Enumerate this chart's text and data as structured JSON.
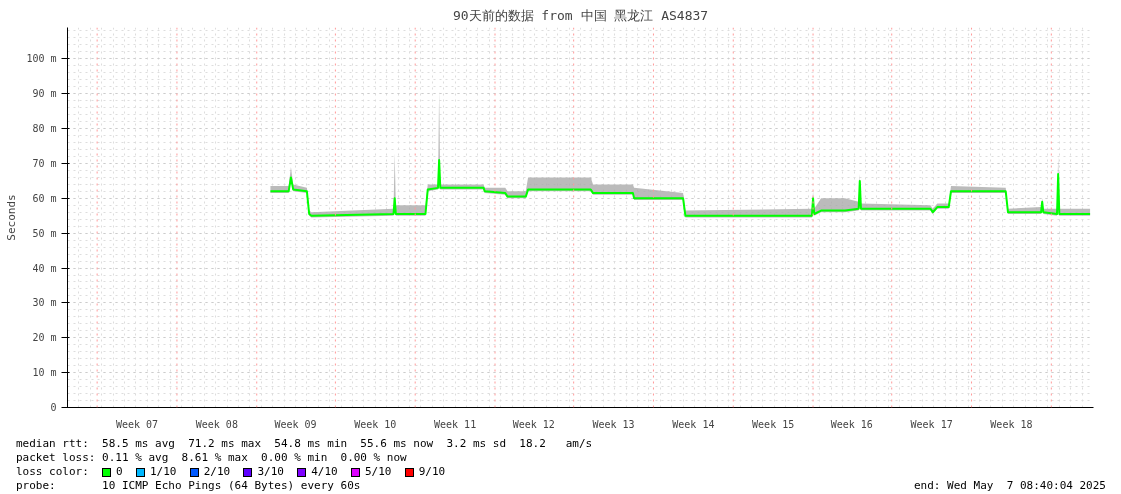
{
  "chart_data": {
    "type": "line",
    "title": "90天前的数据 from 中国 黑龙江 AS4837",
    "ylabel": "Seconds",
    "x": [
      "2025-02-24T03:52",
      "2025-02-25T18:16",
      "2025-02-25T23:04",
      "2025-02-26T03:52",
      "2025-02-27T08:40",
      "2025-02-27T13:28",
      "2025-02-27T18:16",
      "2025-03-06T23:04",
      "2025-03-07T01:28",
      "2025-03-07T03:52",
      "2025-03-09T18:16",
      "2025-03-09T23:04",
      "2025-03-10T20:40",
      "2025-03-10T23:04",
      "2025-03-11T01:28",
      "2025-03-14T20:40",
      "2025-03-14T23:04",
      "2025-03-16T18:16",
      "2025-03-16T23:04",
      "2025-03-18T13:28",
      "2025-03-18T18:16",
      "2025-03-24T06:16",
      "2025-03-24T11:04",
      "2025-03-27T23:04",
      "2025-03-28T01:28",
      "2025-04-01T08:40",
      "2025-04-01T13:28",
      "2025-04-12T15:52",
      "2025-04-12T18:16",
      "2025-04-12T20:40",
      "2025-04-13T11:04",
      "2025-04-15T13:28",
      "2025-04-16T18:16",
      "2025-04-16T20:40",
      "2025-04-16T23:04",
      "2025-04-23T01:28",
      "2025-04-23T06:16",
      "2025-04-23T15:52",
      "2025-04-24T15:52",
      "2025-04-24T20:40",
      "2025-04-29T15:52",
      "2025-04-29T20:40",
      "2025-05-02T18:16",
      "2025-05-02T20:40",
      "2025-05-02T23:04",
      "2025-05-04T03:52",
      "2025-05-04T06:16",
      "2025-05-04T08:40",
      "2025-05-07T01:28"
    ],
    "series": [
      {
        "name": "0",
        "color": "#00ff00",
        "values": [
          62,
          62,
          66,
          62.5,
          62,
          55.5,
          55,
          55.5,
          60,
          55.5,
          55.5,
          62.5,
          63,
          71,
          63,
          63,
          62,
          61.5,
          60.5,
          60.5,
          62.5,
          62.5,
          61.5,
          61.5,
          60,
          60,
          55,
          55,
          60,
          55.5,
          56.5,
          56.5,
          57,
          65,
          57,
          57,
          56,
          57.5,
          57.5,
          62,
          62,
          56,
          56,
          59,
          56,
          55.5,
          67,
          55.5,
          55.5
        ],
        "lower": [
          61.5,
          61.5,
          65.5,
          62,
          61.5,
          55,
          54.5,
          55,
          59.5,
          55,
          55,
          62,
          62.5,
          70.5,
          62.5,
          62.5,
          61.5,
          61,
          60,
          60,
          62,
          62,
          61,
          61,
          59.5,
          59.5,
          54.5,
          54.5,
          59.5,
          55,
          56,
          56,
          56.5,
          64.5,
          56.5,
          56.5,
          55.5,
          57,
          57,
          61.5,
          61.5,
          55.5,
          55.5,
          58.5,
          55.5,
          55,
          66.5,
          55,
          55
        ],
        "upper": [
          63.5,
          63.5,
          69,
          64,
          63,
          56.5,
          56,
          57,
          73,
          58,
          58,
          64,
          64,
          91,
          64,
          64,
          63,
          63,
          62,
          62,
          66,
          66,
          64,
          64,
          63,
          61.5,
          56.5,
          57,
          62,
          57,
          60,
          60,
          59,
          67,
          58.5,
          58,
          57,
          58.5,
          58.5,
          63.5,
          63,
          57,
          57.5,
          60,
          57,
          57,
          72,
          57,
          57
        ]
      },
      {
        "name": "1/10",
        "color": "#00b8ff",
        "values": [
          null,
          null,
          null,
          null,
          null,
          null,
          null,
          null,
          null,
          null,
          null,
          null,
          null,
          null,
          null,
          null,
          null,
          null,
          null,
          null,
          null,
          null,
          null,
          null,
          null,
          null,
          null,
          null,
          null,
          null,
          null,
          null,
          null,
          null,
          null,
          null,
          null,
          null,
          null,
          null,
          null,
          null,
          null,
          null,
          null,
          null,
          null,
          null,
          null
        ]
      },
      {
        "name": "2/10",
        "color": "#0059ff",
        "values": [
          null,
          null,
          null,
          null,
          null,
          null,
          null,
          null,
          null,
          null,
          null,
          null,
          null,
          null,
          null,
          null,
          null,
          null,
          null,
          null,
          null,
          null,
          null,
          null,
          null,
          null,
          null,
          null,
          null,
          null,
          null,
          null,
          null,
          null,
          null,
          null,
          null,
          null,
          null,
          null,
          null,
          null,
          null,
          null,
          null,
          null,
          null,
          null,
          null
        ]
      },
      {
        "name": "3/10",
        "color": "#5e00ff",
        "values": [
          null,
          null,
          null,
          null,
          null,
          null,
          null,
          null,
          null,
          null,
          null,
          null,
          null,
          null,
          null,
          null,
          null,
          null,
          null,
          null,
          null,
          null,
          null,
          null,
          null,
          null,
          null,
          null,
          null,
          null,
          null,
          null,
          null,
          null,
          null,
          null,
          null,
          null,
          null,
          null,
          null,
          null,
          null,
          null,
          null,
          null,
          null,
          null,
          null
        ]
      },
      {
        "name": "4/10",
        "color": "#7e00ff",
        "values": [
          null,
          null,
          null,
          null,
          null,
          null,
          null,
          null,
          null,
          null,
          null,
          null,
          null,
          null,
          null,
          null,
          null,
          null,
          null,
          null,
          null,
          null,
          null,
          null,
          null,
          null,
          null,
          null,
          null,
          null,
          null,
          null,
          null,
          null,
          null,
          null,
          null,
          null,
          null,
          null,
          null,
          null,
          null,
          null,
          null,
          null,
          null,
          null,
          null
        ]
      },
      {
        "name": "5/10",
        "color": "#dd00ff",
        "values": [
          null,
          null,
          null,
          null,
          null,
          null,
          null,
          null,
          null,
          null,
          null,
          null,
          null,
          null,
          null,
          null,
          null,
          null,
          null,
          null,
          null,
          null,
          null,
          null,
          null,
          null,
          null,
          null,
          null,
          null,
          null,
          null,
          null,
          null,
          null,
          null,
          null,
          null,
          null,
          null,
          null,
          null,
          null,
          null,
          null,
          null,
          null,
          null,
          null
        ]
      },
      {
        "name": "9/10",
        "color": "#ff0000",
        "values": [
          null,
          null,
          null,
          null,
          null,
          null,
          null,
          null,
          null,
          null,
          null,
          null,
          null,
          null,
          null,
          null,
          null,
          null,
          null,
          null,
          null,
          null,
          null,
          null,
          null,
          null,
          null,
          null,
          null,
          null,
          null,
          null,
          null,
          null,
          null,
          null,
          null,
          null,
          null,
          null,
          null,
          null,
          null,
          null,
          null,
          null,
          null,
          null,
          null
        ]
      }
    ],
    "xlim": [
      "2025-02-06T08:40",
      "2025-05-07T08:40"
    ],
    "xticks": [
      {
        "value": "2025-02-12T11:04",
        "label": "Week 07"
      },
      {
        "value": "2025-02-19T11:04",
        "label": "Week 08"
      },
      {
        "value": "2025-02-26T08:40",
        "label": "Week 09"
      },
      {
        "value": "2025-03-05T08:40",
        "label": "Week 10"
      },
      {
        "value": "2025-03-12T08:40",
        "label": "Week 11"
      },
      {
        "value": "2025-03-19T06:16",
        "label": "Week 12"
      },
      {
        "value": "2025-03-26T06:16",
        "label": "Week 13"
      },
      {
        "value": "2025-04-02T06:16",
        "label": "Week 14"
      },
      {
        "value": "2025-04-09T06:16",
        "label": "Week 15"
      },
      {
        "value": "2025-04-16T03:52",
        "label": "Week 16"
      },
      {
        "value": "2025-04-23T03:52",
        "label": "Week 17"
      },
      {
        "value": "2025-04-30T03:52",
        "label": "Week 18"
      }
    ],
    "ylim": [
      0,
      109
    ],
    "yticks": [
      0,
      {
        "value": 10,
        "label": "10 m"
      },
      {
        "value": 20,
        "label": "20 m"
      },
      {
        "value": 30,
        "label": "30 m"
      },
      {
        "value": 40,
        "label": "40 m"
      },
      {
        "value": 50,
        "label": "50 m"
      },
      {
        "value": 60,
        "label": "60 m"
      },
      {
        "value": 70,
        "label": "70 m"
      },
      {
        "value": 80,
        "label": "80 m"
      },
      {
        "value": 90,
        "label": "90 m"
      },
      {
        "value": 100,
        "label": "100 m"
      }
    ],
    "ref_lines": [
      {
        "axis": "x",
        "value": "2025-02-08T23:04",
        "color": "#ff9999",
        "line_style": "dotted"
      },
      {
        "axis": "x",
        "value": "2025-02-15T23:04",
        "color": "#ff9999",
        "line_style": "dotted"
      },
      {
        "axis": "x",
        "value": "2025-02-22T23:04",
        "color": "#ff9999",
        "line_style": "dotted"
      },
      {
        "axis": "x",
        "value": "2025-03-01T20:40",
        "color": "#ff9999",
        "line_style": "dotted"
      },
      {
        "axis": "x",
        "value": "2025-03-08T20:40",
        "color": "#ff9999",
        "line_style": "dotted"
      },
      {
        "axis": "x",
        "value": "2025-03-15T20:40",
        "color": "#ff9999",
        "line_style": "dotted"
      },
      {
        "axis": "x",
        "value": "2025-03-22T18:16",
        "color": "#ff9999",
        "line_style": "dotted"
      },
      {
        "axis": "x",
        "value": "2025-03-29T18:16",
        "color": "#ff9999",
        "line_style": "dotted"
      },
      {
        "axis": "x",
        "value": "2025-04-05T18:16",
        "color": "#ff9999",
        "line_style": "dotted"
      },
      {
        "axis": "x",
        "value": "2025-04-12T18:16",
        "color": "#ff9999",
        "line_style": "dotted"
      },
      {
        "axis": "x",
        "value": "2025-04-19T15:52",
        "color": "#ff9999",
        "line_style": "dotted"
      },
      {
        "axis": "x",
        "value": "2025-04-26T15:52",
        "color": "#ff9999",
        "line_style": "dotted"
      },
      {
        "axis": "x",
        "value": "2025-05-03T15:52",
        "color": "#ff9999",
        "line_style": "dotted"
      }
    ],
    "legend": "bottom",
    "legend_title": "loss color:",
    "grid": true,
    "line_style": "solid",
    "annotations": [
      "median rtt:  58.5 ms avg  71.2 ms max  54.8 ms min  55.6 ms now  3.2 ms sd  18.2   am/s",
      "packet loss: 0.11 % avg  8.61 % max  0.00 % min  0.00 % now",
      "probe:       10 ICMP Echo Pings (64 Bytes) every 60s",
      "end: Wed May  7 08:40:04 2025"
    ]
  }
}
